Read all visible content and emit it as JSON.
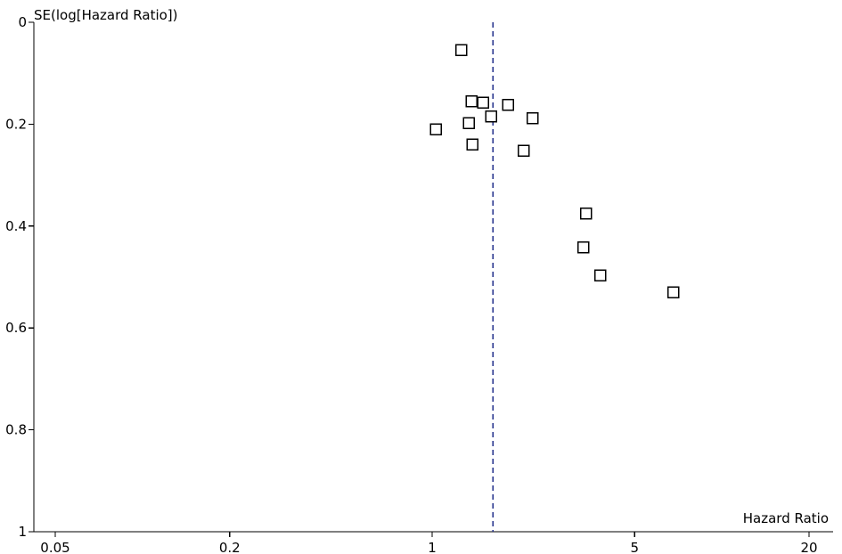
{
  "chart_data": {
    "type": "scatter",
    "title": "",
    "xlabel": "Hazard Ratio",
    "ylabel": "SE(log[Hazard Ratio])",
    "x_scale": "log",
    "y_axis_inverted": true,
    "xlim": [
      0.05,
      20
    ],
    "ylim": [
      0,
      1
    ],
    "x_ticks": [
      0.05,
      0.2,
      1,
      5,
      20
    ],
    "x_tick_labels": [
      "0.05",
      "0.2",
      "1",
      "5",
      "20"
    ],
    "y_ticks": [
      0,
      0.2,
      0.4,
      0.6,
      0.8,
      1
    ],
    "y_tick_labels": [
      "0",
      "0.2",
      "0.4",
      "0.6",
      "0.8",
      "1"
    ],
    "reference_line": {
      "x": 1.62,
      "style": "dashed",
      "color": "#1f2d8a"
    },
    "points": [
      {
        "x": 1.26,
        "y": 0.055
      },
      {
        "x": 1.37,
        "y": 0.155
      },
      {
        "x": 1.5,
        "y": 0.158
      },
      {
        "x": 1.83,
        "y": 0.162
      },
      {
        "x": 1.6,
        "y": 0.185
      },
      {
        "x": 2.22,
        "y": 0.188
      },
      {
        "x": 1.34,
        "y": 0.198
      },
      {
        "x": 1.03,
        "y": 0.21
      },
      {
        "x": 1.38,
        "y": 0.24
      },
      {
        "x": 2.07,
        "y": 0.252
      },
      {
        "x": 3.4,
        "y": 0.375
      },
      {
        "x": 3.33,
        "y": 0.442
      },
      {
        "x": 3.8,
        "y": 0.497
      },
      {
        "x": 6.8,
        "y": 0.53
      }
    ],
    "marker": "square-open",
    "grid": false
  }
}
